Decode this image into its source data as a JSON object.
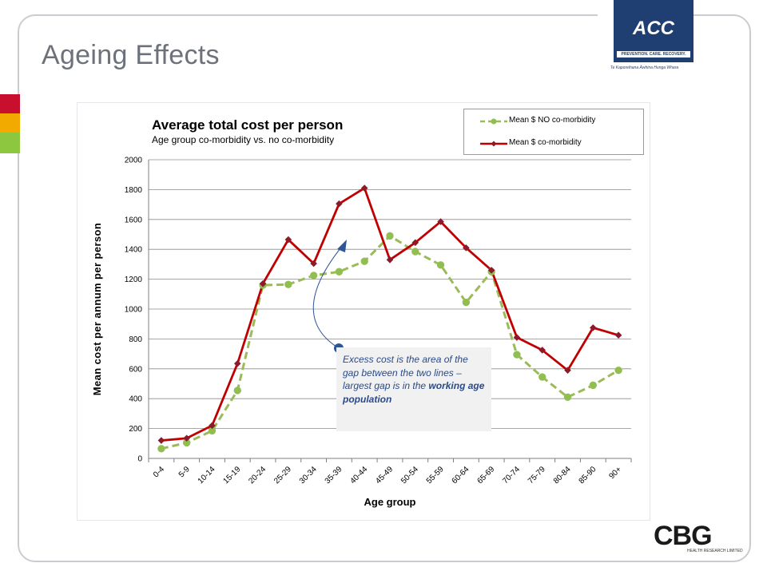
{
  "slide": {
    "title": "Ageing Effects",
    "accent_colors": [
      "#c8102e",
      "#f2a900",
      "#8dc63f"
    ]
  },
  "logos": {
    "acc": {
      "mark": "ACC",
      "tagline": "PREVENTION. CARE. RECOVERY.",
      "maori": "Te Kaporeihana Āwhina Hunga Whara",
      "color": "#1f3f73"
    },
    "cbg": {
      "mark": "CBG",
      "sub": "HEALTH RESEARCH LIMITED"
    }
  },
  "callout": {
    "text_before": "Excess cost is the area of the gap between the two lines – largest gap is in the ",
    "text_bold": "working age population"
  },
  "chart_data": {
    "type": "line",
    "title": "Average total cost per person",
    "subtitle": "Age group co-morbidity  vs.  no co-morbidity",
    "xlabel": "Age group",
    "ylabel": "Mean cost per annum per person",
    "ylim": [
      0,
      2000
    ],
    "yticks": [
      0,
      200,
      400,
      600,
      800,
      1000,
      1200,
      1400,
      1600,
      1800,
      2000
    ],
    "grid": true,
    "legend_position": "top-right",
    "categories": [
      "0-4",
      "5-9",
      "10-14",
      "15-19",
      "20-24",
      "25-29",
      "30-34",
      "35-39",
      "40-44",
      "45-49",
      "50-54",
      "55-59",
      "60-64",
      "65-69",
      "70-74",
      "75-79",
      "80-84",
      "85-90",
      "90+"
    ],
    "series": [
      {
        "name": "Mean $ NO co-morbidity",
        "color": "#9bbb59",
        "marker_color": "#8fbf4f",
        "style": "dashed",
        "values": [
          65,
          105,
          185,
          455,
          1160,
          1165,
          1225,
          1250,
          1320,
          1490,
          1385,
          1295,
          1045,
          1250,
          695,
          545,
          410,
          490,
          590
        ]
      },
      {
        "name": "Mean $ co-morbidity",
        "color": "#c00000",
        "marker_color": "#8b1a2b",
        "style": "solid",
        "values": [
          120,
          135,
          220,
          635,
          1170,
          1465,
          1305,
          1705,
          1810,
          1330,
          1445,
          1585,
          1410,
          1260,
          810,
          725,
          590,
          875,
          825
        ]
      }
    ]
  }
}
